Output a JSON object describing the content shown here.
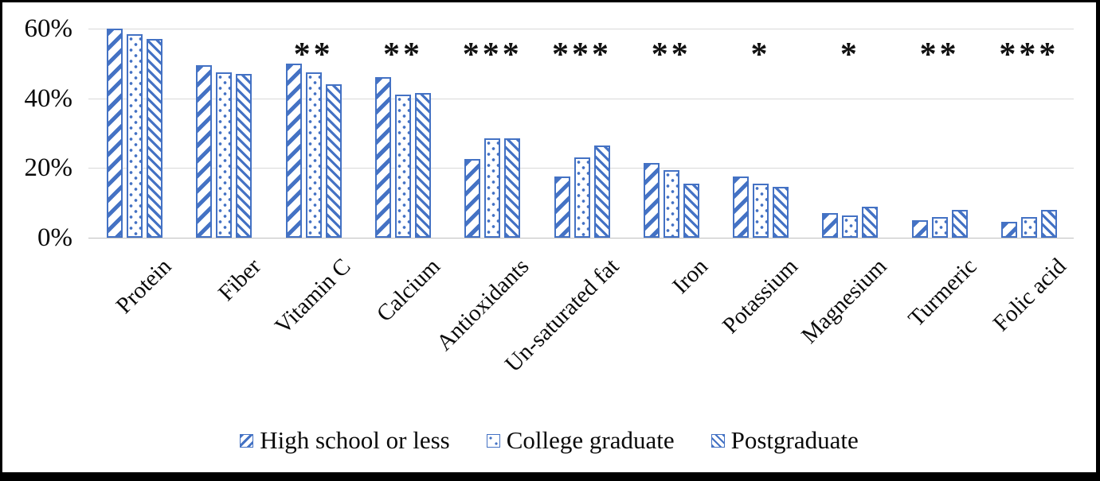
{
  "chart_data": {
    "type": "bar",
    "title": "",
    "categories": [
      "Protein",
      "Fiber",
      "Vitamin C",
      "Calcium",
      "Antioxidants",
      "Un-saturated fat",
      "Iron",
      "Potassium",
      "Magnesium",
      "Turmeric",
      "Folic acid"
    ],
    "series": [
      {
        "name": "High school or less",
        "pattern": "wide-diagonal-up-stripes",
        "values": [
          60,
          49.5,
          50,
          46,
          22.5,
          17.5,
          21.5,
          17.5,
          7,
          5,
          4.5
        ]
      },
      {
        "name": "College graduate",
        "pattern": "dots",
        "values": [
          58.5,
          47.5,
          47.5,
          41,
          28.5,
          23,
          19.5,
          15.5,
          6.5,
          6,
          6
        ]
      },
      {
        "name": "Postgraduate",
        "pattern": "thin-diagonal-down-stripes",
        "values": [
          57,
          47,
          44,
          41.5,
          28.5,
          26.5,
          15.5,
          14.5,
          9,
          8,
          8
        ]
      }
    ],
    "significance": [
      "",
      "",
      "**",
      "**",
      "***",
      "***",
      "**",
      "*",
      "*",
      "**",
      "***"
    ],
    "yticks": [
      "0%",
      "20%",
      "40%",
      "60%"
    ],
    "ytick_values": [
      0,
      20,
      40,
      60
    ],
    "ylim": [
      0,
      60
    ],
    "xlabel": "",
    "ylabel": "",
    "grid": true,
    "legend_position": "bottom",
    "bar_color": "#4472C4",
    "gridline_color": "#d9d9d9",
    "text_color": "#000000",
    "frame_border_color": "#000000"
  }
}
